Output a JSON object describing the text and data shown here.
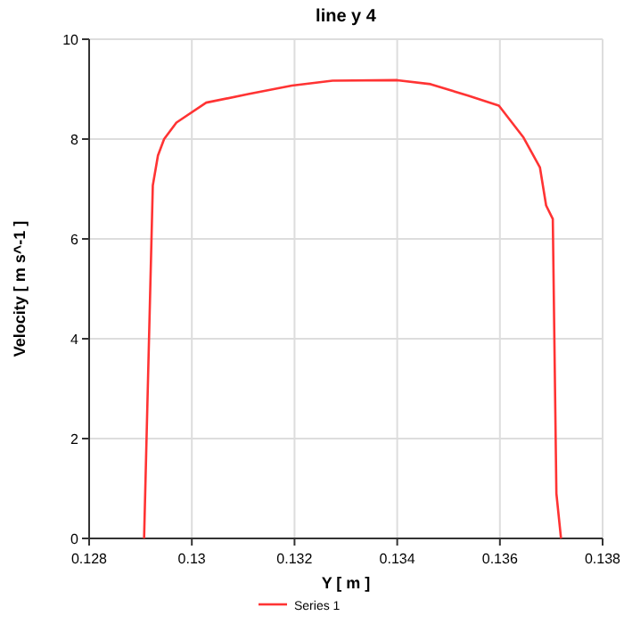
{
  "chart_data": {
    "type": "line",
    "title": "line y 4",
    "xlabel": "Y [ m ]",
    "ylabel": "Velocity [ m s^-1 ]",
    "xlim": [
      0.128,
      0.138
    ],
    "xticks": [
      0.128,
      0.13,
      0.132,
      0.134,
      0.136,
      0.138
    ],
    "ylim": [
      0,
      10
    ],
    "yticks": [
      0,
      2,
      4,
      6,
      8,
      10
    ],
    "grid": true,
    "legend": "bottom",
    "marker": "none",
    "line_style": "solid",
    "series": [
      {
        "name": "Series 1",
        "color": "#ff3333",
        "x": [
          0.12907,
          0.12924,
          0.12934,
          0.12946,
          0.1297,
          0.13028,
          0.1311,
          0.13195,
          0.13274,
          0.134,
          0.13465,
          0.13538,
          0.13598,
          0.13646,
          0.13678,
          0.1369,
          0.13703,
          0.1371,
          0.13719
        ],
        "values": [
          0,
          7.07,
          7.67,
          8.0,
          8.33,
          8.73,
          8.9,
          9.07,
          9.17,
          9.18,
          9.1,
          8.87,
          8.67,
          8.03,
          7.43,
          6.67,
          6.4,
          0.9,
          0
        ]
      }
    ]
  }
}
